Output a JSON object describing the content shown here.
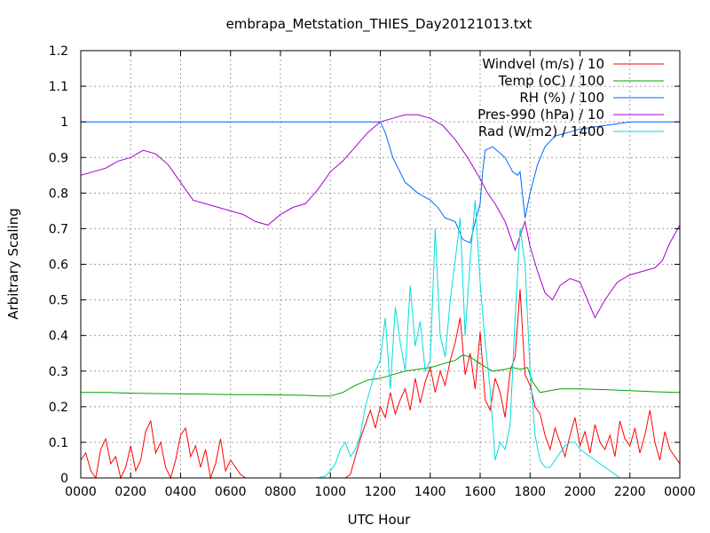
{
  "chart_data": {
    "type": "line",
    "title": "embrapa_Metstation_THIES_Day20121013.txt",
    "xlabel": "UTC Hour",
    "ylabel": "Arbitrary Scaling",
    "xlim": [
      0,
      24
    ],
    "ylim": [
      0,
      1.2
    ],
    "xticks": [
      {
        "v": 0,
        "label": "0000"
      },
      {
        "v": 2,
        "label": "0200"
      },
      {
        "v": 4,
        "label": "0400"
      },
      {
        "v": 6,
        "label": "0600"
      },
      {
        "v": 8,
        "label": "0800"
      },
      {
        "v": 10,
        "label": "1000"
      },
      {
        "v": 12,
        "label": "1200"
      },
      {
        "v": 14,
        "label": "1400"
      },
      {
        "v": 16,
        "label": "1600"
      },
      {
        "v": 18,
        "label": "1800"
      },
      {
        "v": 20,
        "label": "2000"
      },
      {
        "v": 22,
        "label": "2200"
      },
      {
        "v": 24,
        "label": "0000"
      }
    ],
    "yticks": [
      {
        "v": 0,
        "label": "0"
      },
      {
        "v": 0.1,
        "label": "0.1"
      },
      {
        "v": 0.2,
        "label": "0.2"
      },
      {
        "v": 0.3,
        "label": "0.3"
      },
      {
        "v": 0.4,
        "label": "0.4"
      },
      {
        "v": 0.5,
        "label": "0.5"
      },
      {
        "v": 0.6,
        "label": "0.6"
      },
      {
        "v": 0.7,
        "label": "0.7"
      },
      {
        "v": 0.8,
        "label": "0.8"
      },
      {
        "v": 0.9,
        "label": "0.9"
      },
      {
        "v": 1.0,
        "label": "1"
      },
      {
        "v": 1.1,
        "label": "1.1"
      },
      {
        "v": 1.2,
        "label": "1.2"
      }
    ],
    "grid": true,
    "legend_position": "top-right",
    "series": [
      {
        "name": "Windvel (m/s) / 10",
        "color": "#ff0000",
        "x": [
          0,
          0.2,
          0.4,
          0.6,
          0.8,
          1.0,
          1.2,
          1.4,
          1.6,
          1.8,
          2.0,
          2.2,
          2.4,
          2.6,
          2.8,
          3.0,
          3.2,
          3.4,
          3.6,
          3.8,
          4.0,
          4.2,
          4.4,
          4.6,
          4.8,
          5.0,
          5.2,
          5.4,
          5.6,
          5.8,
          6.0,
          6.2,
          6.4,
          6.6,
          9.6,
          9.8,
          10.0,
          10.2,
          10.4,
          10.6,
          10.8,
          11.0,
          11.2,
          11.4,
          11.6,
          11.8,
          12.0,
          12.2,
          12.4,
          12.6,
          12.8,
          13.0,
          13.2,
          13.4,
          13.6,
          13.8,
          14.0,
          14.2,
          14.4,
          14.6,
          14.8,
          15.0,
          15.2,
          15.4,
          15.6,
          15.8,
          16.0,
          16.2,
          16.4,
          16.6,
          16.8,
          17.0,
          17.2,
          17.4,
          17.6,
          17.8,
          18.0,
          18.2,
          18.4,
          18.6,
          18.8,
          19.0,
          19.2,
          19.4,
          19.6,
          19.8,
          20.0,
          20.2,
          20.4,
          20.6,
          20.8,
          21.0,
          21.2,
          21.4,
          21.6,
          21.8,
          22.0,
          22.2,
          22.4,
          22.6,
          22.8,
          23.0,
          23.2,
          23.4,
          23.6,
          23.8,
          24.0
        ],
        "y": [
          0.05,
          0.07,
          0.02,
          0.0,
          0.08,
          0.11,
          0.04,
          0.06,
          0.0,
          0.03,
          0.09,
          0.02,
          0.05,
          0.13,
          0.16,
          0.07,
          0.1,
          0.03,
          0.0,
          0.05,
          0.12,
          0.14,
          0.06,
          0.09,
          0.03,
          0.08,
          0.0,
          0.04,
          0.11,
          0.02,
          0.05,
          0.03,
          0.01,
          0.0,
          0.0,
          0.0,
          0.0,
          0.0,
          0.0,
          0.0,
          0.01,
          0.06,
          0.11,
          0.15,
          0.19,
          0.14,
          0.2,
          0.17,
          0.24,
          0.18,
          0.22,
          0.25,
          0.19,
          0.28,
          0.21,
          0.27,
          0.31,
          0.24,
          0.3,
          0.26,
          0.33,
          0.38,
          0.45,
          0.29,
          0.35,
          0.25,
          0.41,
          0.22,
          0.19,
          0.28,
          0.24,
          0.17,
          0.3,
          0.34,
          0.53,
          0.29,
          0.26,
          0.2,
          0.18,
          0.12,
          0.08,
          0.14,
          0.1,
          0.06,
          0.12,
          0.17,
          0.09,
          0.13,
          0.07,
          0.15,
          0.1,
          0.08,
          0.12,
          0.06,
          0.16,
          0.11,
          0.09,
          0.14,
          0.07,
          0.12,
          0.19,
          0.1,
          0.05,
          0.13,
          0.08,
          0.06,
          0.04
        ]
      },
      {
        "name": "Temp (oC) / 100",
        "color": "#00a000",
        "x": [
          0,
          1,
          2,
          3,
          4,
          5,
          6,
          7,
          8,
          9,
          9.5,
          10,
          10.5,
          11,
          11.5,
          12,
          12.5,
          13,
          13.5,
          14,
          14.5,
          15,
          15.3,
          15.6,
          16,
          16.5,
          17,
          17.3,
          17.6,
          17.9,
          18.1,
          18.4,
          18.8,
          19.2,
          20,
          21,
          22,
          23,
          24
        ],
        "y": [
          0.24,
          0.24,
          0.238,
          0.237,
          0.236,
          0.235,
          0.234,
          0.234,
          0.233,
          0.232,
          0.23,
          0.23,
          0.24,
          0.26,
          0.275,
          0.28,
          0.29,
          0.3,
          0.305,
          0.31,
          0.32,
          0.33,
          0.345,
          0.34,
          0.32,
          0.3,
          0.305,
          0.31,
          0.305,
          0.31,
          0.27,
          0.24,
          0.245,
          0.25,
          0.25,
          0.248,
          0.245,
          0.242,
          0.24
        ]
      },
      {
        "name": "RH (%) / 100",
        "color": "#0066ff",
        "x": [
          0,
          2,
          4,
          6,
          8,
          10,
          11.5,
          11.8,
          12,
          12.2,
          12.5,
          13,
          13.5,
          14,
          14.3,
          14.6,
          15,
          15.3,
          15.6,
          15.8,
          16,
          16.1,
          16.2,
          16.5,
          17,
          17.3,
          17.5,
          17.6,
          17.8,
          18,
          18.3,
          18.6,
          19,
          20,
          21,
          22,
          23,
          24
        ],
        "y": [
          1.0,
          1.0,
          1.0,
          1.0,
          1.0,
          1.0,
          1.0,
          1.0,
          1.0,
          0.97,
          0.9,
          0.83,
          0.8,
          0.78,
          0.76,
          0.73,
          0.72,
          0.67,
          0.66,
          0.72,
          0.77,
          0.86,
          0.92,
          0.93,
          0.9,
          0.86,
          0.85,
          0.86,
          0.73,
          0.8,
          0.88,
          0.93,
          0.96,
          0.98,
          0.99,
          1.0,
          1.0,
          1.0
        ]
      },
      {
        "name": "Pres-990 (hPa) / 10",
        "color": "#a000d0",
        "x": [
          0,
          0.5,
          1,
          1.5,
          2,
          2.5,
          3,
          3.5,
          4,
          4.5,
          5,
          5.5,
          6,
          6.5,
          7,
          7.5,
          8,
          8.5,
          9,
          9.5,
          10,
          10.5,
          11,
          11.5,
          12,
          12.5,
          13,
          13.5,
          14,
          14.5,
          15,
          15.5,
          16,
          16.3,
          16.6,
          17,
          17.2,
          17.4,
          17.6,
          17.8,
          18,
          18.3,
          18.6,
          18.9,
          19.2,
          19.6,
          20,
          20.3,
          20.6,
          21,
          21.5,
          22,
          22.5,
          23,
          23.3,
          23.6,
          24
        ],
        "y": [
          0.85,
          0.86,
          0.87,
          0.89,
          0.9,
          0.92,
          0.91,
          0.88,
          0.83,
          0.78,
          0.77,
          0.76,
          0.75,
          0.74,
          0.72,
          0.71,
          0.74,
          0.76,
          0.77,
          0.81,
          0.86,
          0.89,
          0.93,
          0.97,
          1.0,
          1.01,
          1.02,
          1.02,
          1.01,
          0.99,
          0.95,
          0.9,
          0.84,
          0.8,
          0.77,
          0.72,
          0.68,
          0.64,
          0.68,
          0.72,
          0.65,
          0.58,
          0.52,
          0.5,
          0.54,
          0.56,
          0.55,
          0.5,
          0.45,
          0.5,
          0.55,
          0.57,
          0.58,
          0.59,
          0.61,
          0.66,
          0.71
        ]
      },
      {
        "name": "Rad (W/m2) / 1400",
        "color": "#00dddd",
        "x": [
          0,
          9.5,
          9.8,
          10.0,
          10.2,
          10.4,
          10.6,
          10.8,
          11.0,
          11.2,
          11.4,
          11.6,
          11.8,
          12.0,
          12.2,
          12.4,
          12.6,
          12.8,
          13.0,
          13.2,
          13.4,
          13.6,
          13.8,
          14.0,
          14.2,
          14.4,
          14.6,
          14.8,
          15.0,
          15.2,
          15.4,
          15.6,
          15.8,
          16.0,
          16.2,
          16.4,
          16.6,
          16.8,
          17.0,
          17.2,
          17.4,
          17.6,
          17.8,
          18.0,
          18.2,
          18.4,
          18.6,
          18.8,
          19.0,
          19.2,
          19.4,
          19.6,
          19.8,
          20.0,
          20.2,
          20.4,
          20.6,
          20.8,
          21.0,
          21.2,
          21.4,
          21.6,
          21.8,
          22.0,
          22.2,
          24
        ],
        "y": [
          0.0,
          0.0,
          0.005,
          0.02,
          0.04,
          0.08,
          0.1,
          0.06,
          0.08,
          0.12,
          0.2,
          0.25,
          0.3,
          0.33,
          0.45,
          0.25,
          0.48,
          0.38,
          0.3,
          0.54,
          0.37,
          0.44,
          0.3,
          0.33,
          0.7,
          0.4,
          0.34,
          0.5,
          0.61,
          0.73,
          0.4,
          0.61,
          0.78,
          0.55,
          0.38,
          0.25,
          0.05,
          0.1,
          0.08,
          0.15,
          0.45,
          0.7,
          0.6,
          0.3,
          0.12,
          0.05,
          0.03,
          0.03,
          0.05,
          0.07,
          0.09,
          0.1,
          0.1,
          0.08,
          0.07,
          0.06,
          0.05,
          0.04,
          0.03,
          0.02,
          0.01,
          0.0,
          0.0,
          0.0,
          0.0,
          0.0
        ]
      }
    ]
  }
}
